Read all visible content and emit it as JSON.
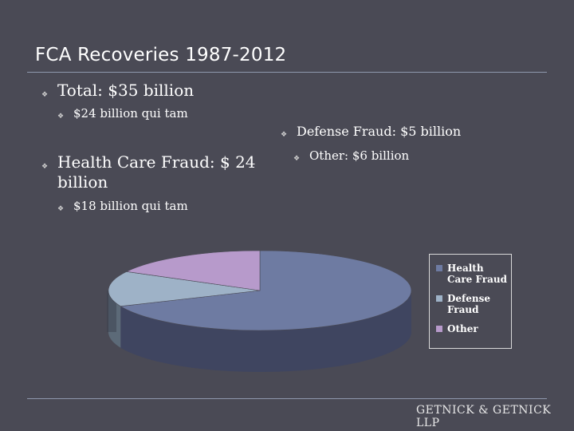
{
  "slide": {
    "title": "FCA Recoveries 1987-2012",
    "bullets": [
      {
        "text": "Total: $35 billion",
        "sub": "$24 billion qui tam"
      },
      {
        "text": "Health Care Fraud: $ 24 billion",
        "sub": "$18 billion qui tam"
      },
      {
        "text": "Defense Fraud: $5 billion",
        "sub": "Other: $6 billion"
      }
    ],
    "logo": "GETNICK & GETNICK LLP"
  },
  "chart_data": {
    "type": "pie",
    "categories": [
      "Health Care Fraud",
      "Defense Fraud",
      "Other"
    ],
    "values": [
      24,
      5,
      6
    ],
    "legend": [
      "Health Care Fraud",
      "Defense Fraud",
      "Other"
    ],
    "legend_position": "right",
    "colors": [
      "#6e7ba2",
      "#9eb2c7",
      "#b79acb"
    ],
    "side_colors": [
      "#3f4560",
      "#5c6a78",
      "#6b5a78"
    ]
  }
}
